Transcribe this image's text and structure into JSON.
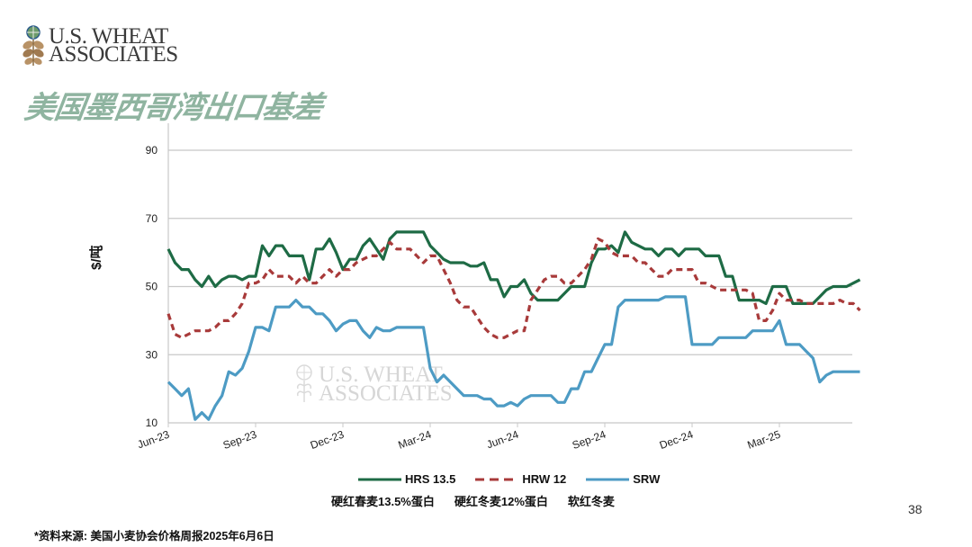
{
  "header": {
    "logo_line1": "U.S. WHEAT",
    "logo_line2": "ASSOCIATES",
    "title": "美国墨西哥湾出口基差"
  },
  "watermark": {
    "line1": "U.S. WHEAT",
    "line2": "ASSOCIATES"
  },
  "legend": {
    "items": [
      {
        "label": "HRS 13.5",
        "color": "#1e6b45",
        "style": "solid"
      },
      {
        "label": "HRW 12",
        "color": "#a83a3a",
        "style": "dashed"
      },
      {
        "label": "SRW",
        "color": "#4d9bc4",
        "style": "solid"
      }
    ],
    "descriptions": [
      "硬红春麦13.5%蛋白",
      "硬红冬麦12%蛋白",
      "软红冬麦"
    ]
  },
  "footer": {
    "source": "*资料来源: 美国小麦协会价格周报2025年6月6日",
    "page_number": "38"
  },
  "chart_data": {
    "type": "line",
    "title": "美国墨西哥湾出口基差",
    "xlabel": "",
    "ylabel": "$/吨",
    "ylim": [
      10,
      90
    ],
    "yticks": [
      10,
      30,
      50,
      70,
      90
    ],
    "grid": true,
    "legend_position": "bottom",
    "x_tick_labels": [
      "Jun-23",
      "Sep-23",
      "Dec-23",
      "Mar-24",
      "Jun-24",
      "Sep-24",
      "Dec-24",
      "Mar-25"
    ],
    "x_tick_weeks": [
      0,
      13,
      26,
      39,
      52,
      65,
      78,
      91
    ],
    "x_unit": "weekly",
    "series": [
      {
        "name": "HRS 13.5",
        "description": "硬红春麦13.5%蛋白",
        "color": "#1e6b45",
        "dash": "",
        "values": [
          61,
          57,
          55,
          55,
          52,
          50,
          53,
          50,
          52,
          53,
          53,
          52,
          53,
          53,
          62,
          59,
          62,
          62,
          59,
          59,
          59,
          52,
          61,
          61,
          64,
          60,
          55,
          58,
          58,
          62,
          64,
          61,
          58,
          64,
          66,
          66,
          66,
          66,
          66,
          62,
          60,
          58,
          57,
          57,
          57,
          56,
          56,
          57,
          52,
          52,
          47,
          50,
          50,
          52,
          48,
          46,
          46,
          46,
          46,
          48,
          50,
          50,
          50,
          57,
          61,
          61,
          62,
          60,
          66,
          63,
          62,
          61,
          61,
          59,
          61,
          61,
          59,
          61,
          61,
          61,
          59,
          59,
          59,
          53,
          53,
          46,
          46,
          46,
          46,
          45,
          50,
          50,
          50,
          45,
          45,
          45,
          45,
          47,
          49,
          50,
          50,
          50,
          51,
          52
        ]
      },
      {
        "name": "HRW 12",
        "description": "硬红冬麦12%蛋白",
        "color": "#a83a3a",
        "dash": "7,5",
        "values": [
          42,
          36,
          35,
          36,
          37,
          37,
          37,
          38,
          40,
          40,
          42,
          45,
          51,
          51,
          52,
          55,
          53,
          53,
          53,
          51,
          53,
          51,
          51,
          53,
          55,
          53,
          55,
          55,
          57,
          58,
          59,
          59,
          61,
          63,
          61,
          61,
          61,
          59,
          57,
          59,
          59,
          55,
          51,
          46,
          44,
          44,
          41,
          38,
          36,
          35,
          35,
          36,
          37,
          37,
          46,
          49,
          52,
          53,
          53,
          51,
          51,
          53,
          55,
          58,
          64,
          63,
          60,
          59,
          59,
          59,
          57,
          57,
          55,
          53,
          53,
          55,
          55,
          55,
          55,
          51,
          51,
          50,
          49,
          49,
          49,
          49,
          49,
          48,
          40,
          40,
          43,
          48,
          46,
          46,
          46,
          45,
          45,
          45,
          45,
          45,
          46,
          45,
          45,
          43
        ]
      },
      {
        "name": "SRW",
        "description": "软红冬麦",
        "color": "#4d9bc4",
        "dash": "",
        "values": [
          22,
          20,
          18,
          20,
          11,
          13,
          11,
          15,
          18,
          25,
          24,
          26,
          31,
          38,
          38,
          37,
          44,
          44,
          44,
          46,
          44,
          44,
          42,
          42,
          40,
          37,
          39,
          40,
          40,
          37,
          35,
          38,
          37,
          37,
          38,
          38,
          38,
          38,
          38,
          26,
          22,
          24,
          22,
          20,
          18,
          18,
          18,
          17,
          17,
          15,
          15,
          16,
          15,
          17,
          18,
          18,
          18,
          18,
          16,
          16,
          20,
          20,
          25,
          25,
          29,
          33,
          33,
          44,
          46,
          46,
          46,
          46,
          46,
          46,
          47,
          47,
          47,
          47,
          33,
          33,
          33,
          33,
          35,
          35,
          35,
          35,
          35,
          37,
          37,
          37,
          37,
          40,
          33,
          33,
          33,
          31,
          29,
          22,
          24,
          25,
          25,
          25,
          25,
          25
        ]
      }
    ]
  }
}
